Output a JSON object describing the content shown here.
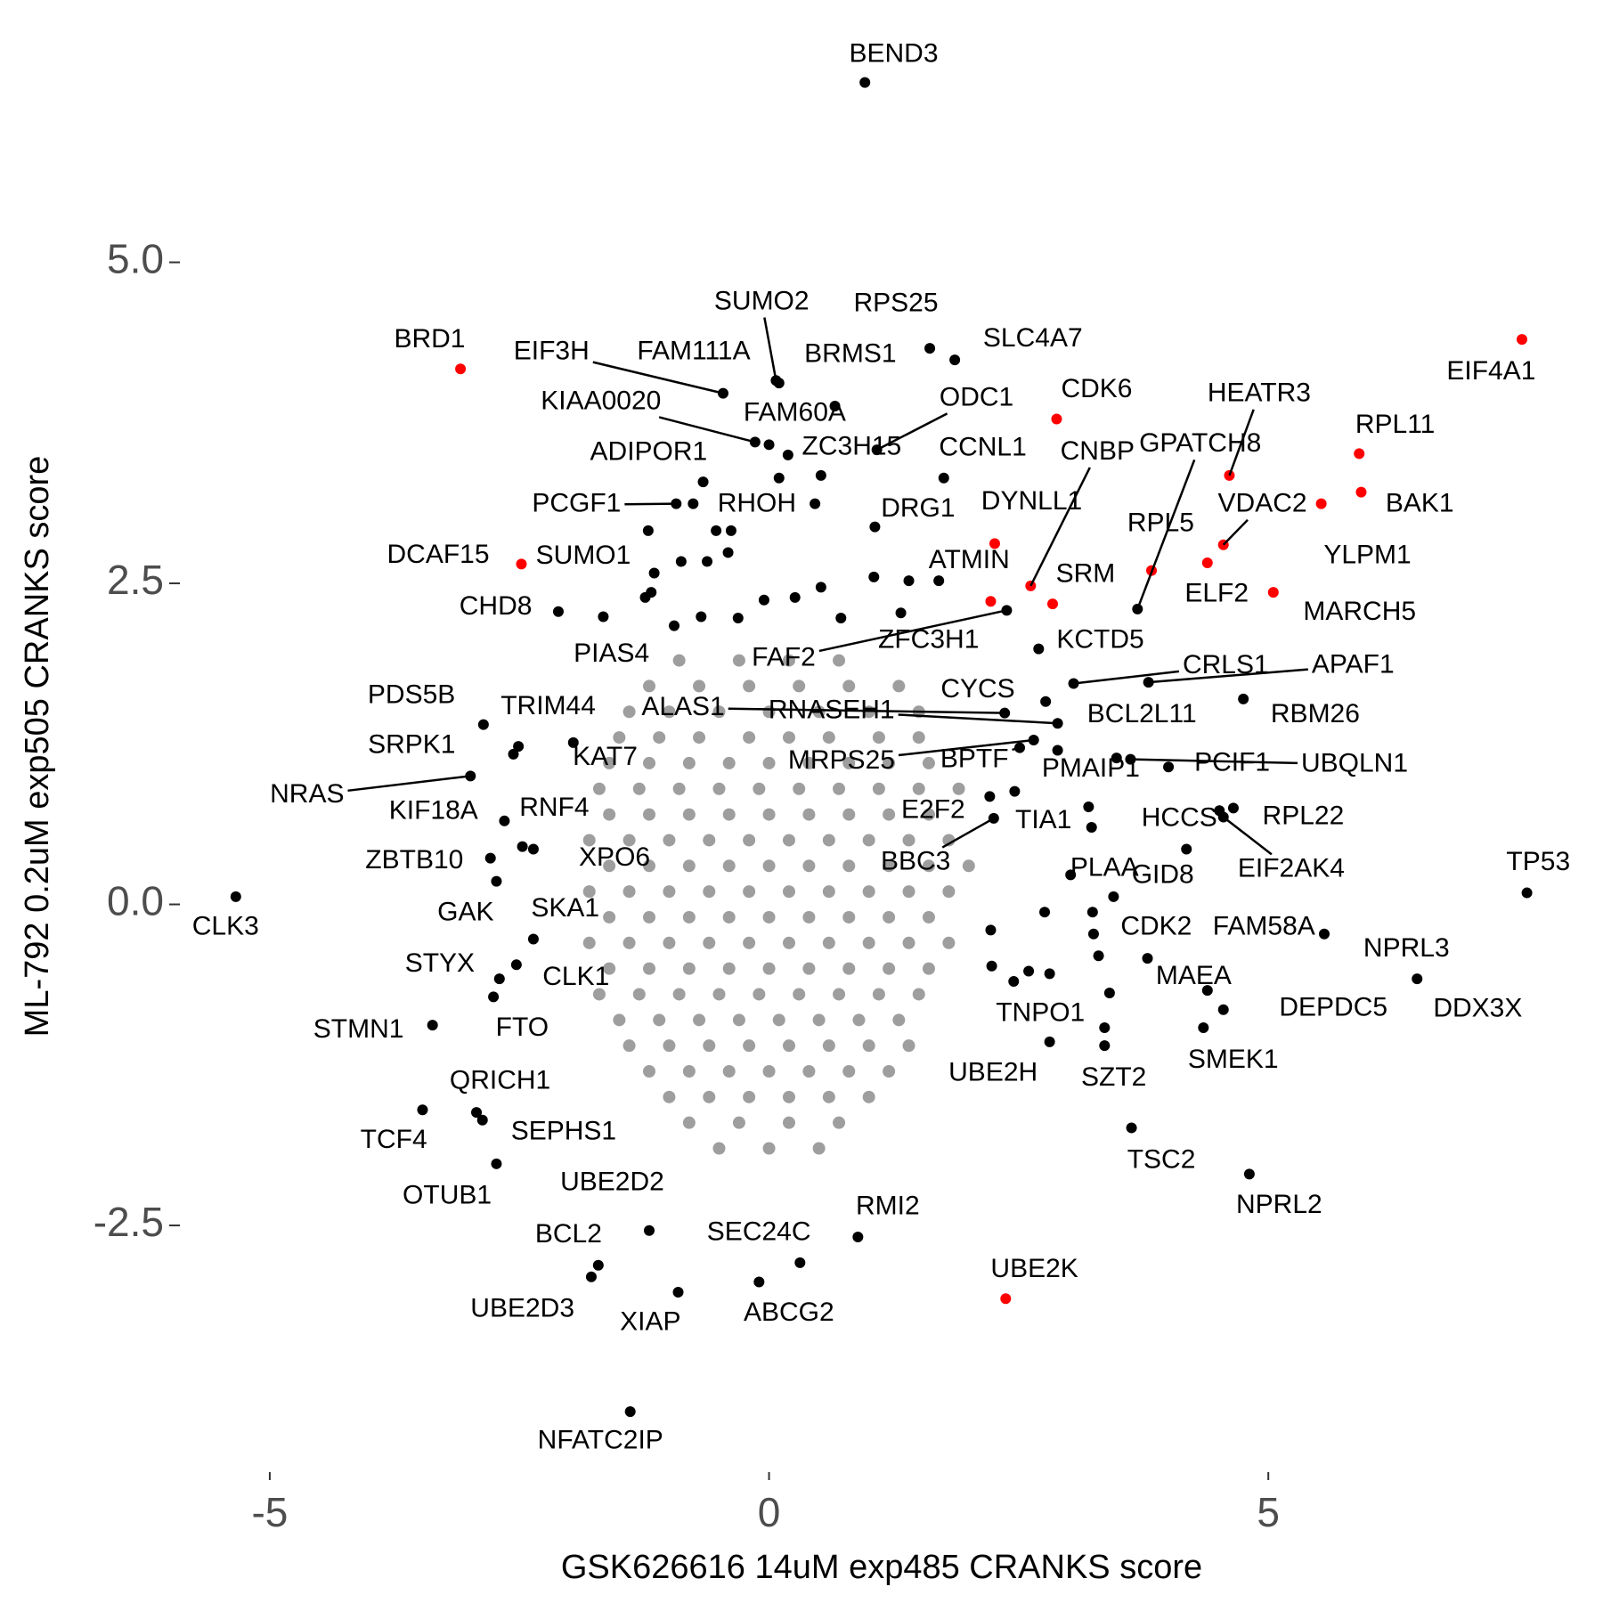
{
  "chart_data": {
    "type": "scatter",
    "x_label": "GSK626616 14uM exp485 CRANKS score",
    "y_label": "ML-792 0.2uM exp505 CRANKS score",
    "xlim": [
      -5.9,
      8.2
    ],
    "ylim": [
      -4.4,
      6.8
    ],
    "xticks": [
      -5,
      0,
      5
    ],
    "yticks": [
      -2.5,
      {
        "value": 0,
        "label": "0.0"
      },
      2.5,
      {
        "value": 5,
        "label": "5.0"
      }
    ],
    "grid": false,
    "series": [
      {
        "color": "#9e9e9e",
        "x": [
          -0.9,
          -0.3,
          0.2,
          0.7,
          -1.2,
          -0.7,
          -0.2,
          0.3,
          0.8,
          1.3,
          -1.4,
          -1.0,
          -0.5,
          0,
          0.5,
          1.0,
          1.5,
          -1.5,
          -1.1,
          -0.7,
          -0.2,
          0.2,
          0.6,
          1.1,
          1.5,
          -1.6,
          -1.2,
          -0.8,
          -0.4,
          0,
          0.4,
          0.8,
          1.2,
          1.6,
          -1.7,
          -1.3,
          -0.9,
          -0.5,
          -0.1,
          0.3,
          0.7,
          1.1,
          1.5,
          1.9,
          -1.6,
          -1.2,
          -0.8,
          -0.4,
          0,
          0.4,
          0.8,
          1.2,
          1.6,
          -1.8,
          -1.4,
          -1.0,
          -0.6,
          -0.2,
          0.2,
          0.6,
          1.0,
          1.4,
          1.8,
          -1.6,
          -1.2,
          -0.8,
          -0.4,
          0,
          0.4,
          0.8,
          1.2,
          1.6,
          2.0,
          -1.8,
          -1.4,
          -1.0,
          -0.6,
          -0.2,
          0.2,
          0.6,
          1.0,
          1.4,
          1.8,
          -1.6,
          -1.2,
          -0.8,
          -0.4,
          0,
          0.4,
          0.8,
          1.2,
          1.6,
          -1.8,
          -1.4,
          -1.0,
          -0.6,
          -0.2,
          0.2,
          0.6,
          1.0,
          1.4,
          1.8,
          -1.6,
          -1.2,
          -0.8,
          -0.4,
          0,
          0.4,
          0.8,
          1.2,
          1.6,
          -1.7,
          -1.3,
          -0.9,
          -0.5,
          -0.1,
          0.3,
          0.7,
          1.1,
          1.5,
          -1.5,
          -1.1,
          -0.7,
          -0.3,
          0.1,
          0.5,
          0.9,
          1.3,
          -1.4,
          -1.0,
          -0.6,
          -0.2,
          0.2,
          0.6,
          1.0,
          1.4,
          -1.2,
          -0.8,
          -0.4,
          0,
          0.4,
          0.8,
          1.2,
          -1.0,
          -0.6,
          -0.2,
          0.2,
          0.6,
          1.0,
          -0.8,
          -0.3,
          0.2,
          0.7,
          -0.5,
          0,
          0.5
        ],
        "values": [
          1.9,
          1.9,
          1.9,
          1.9,
          1.7,
          1.7,
          1.7,
          1.7,
          1.7,
          1.7,
          1.5,
          1.5,
          1.5,
          1.5,
          1.5,
          1.5,
          1.5,
          1.3,
          1.3,
          1.3,
          1.3,
          1.3,
          1.3,
          1.3,
          1.3,
          1.1,
          1.1,
          1.1,
          1.1,
          1.1,
          1.1,
          1.1,
          1.1,
          1.1,
          0.9,
          0.9,
          0.9,
          0.9,
          0.9,
          0.9,
          0.9,
          0.9,
          0.9,
          0.9,
          0.7,
          0.7,
          0.7,
          0.7,
          0.7,
          0.7,
          0.7,
          0.7,
          0.7,
          0.5,
          0.5,
          0.5,
          0.5,
          0.5,
          0.5,
          0.5,
          0.5,
          0.5,
          0.5,
          0.3,
          0.3,
          0.3,
          0.3,
          0.3,
          0.3,
          0.3,
          0.3,
          0.3,
          0.3,
          0.1,
          0.1,
          0.1,
          0.1,
          0.1,
          0.1,
          0.1,
          0.1,
          0.1,
          0.1,
          -0.1,
          -0.1,
          -0.1,
          -0.1,
          -0.1,
          -0.1,
          -0.1,
          -0.1,
          -0.1,
          -0.3,
          -0.3,
          -0.3,
          -0.3,
          -0.3,
          -0.3,
          -0.3,
          -0.3,
          -0.3,
          -0.3,
          -0.5,
          -0.5,
          -0.5,
          -0.5,
          -0.5,
          -0.5,
          -0.5,
          -0.5,
          -0.5,
          -0.7,
          -0.7,
          -0.7,
          -0.7,
          -0.7,
          -0.7,
          -0.7,
          -0.7,
          -0.7,
          -0.9,
          -0.9,
          -0.9,
          -0.9,
          -0.9,
          -0.9,
          -0.9,
          -0.9,
          -1.1,
          -1.1,
          -1.1,
          -1.1,
          -1.1,
          -1.1,
          -1.1,
          -1.1,
          -1.3,
          -1.3,
          -1.3,
          -1.3,
          -1.3,
          -1.3,
          -1.3,
          -1.5,
          -1.5,
          -1.5,
          -1.5,
          -1.5,
          -1.5,
          -1.7,
          -1.7,
          -1.7,
          -1.7,
          -1.9,
          -1.9,
          -1.9
        ]
      },
      {
        "color": "#000000",
        "x": [
          -0.53,
          -0.38,
          -1.21,
          -0.88,
          -0.62,
          -0.41,
          -0.05,
          0.26,
          0.52,
          0.72,
          1.05,
          1.4,
          1.7,
          -0.31,
          -0.68,
          -0.95,
          3.24,
          3.23,
          3.45,
          3.3,
          3.41,
          3.2,
          2.45,
          2.6,
          2.23,
          2.22,
          2.76,
          3.36,
          0.52,
          0.1,
          0.46,
          -1.18,
          -1.24
        ],
        "values": [
          2.91,
          2.91,
          2.91,
          2.67,
          2.67,
          2.74,
          2.37,
          2.39,
          2.47,
          2.23,
          2.55,
          2.52,
          2.52,
          2.23,
          2.24,
          2.17,
          -0.06,
          0.6,
          0.06,
          -0.4,
          -0.69,
          0.76,
          -0.6,
          -0.52,
          -0.48,
          -0.2,
          -0.06,
          -0.96,
          3.34,
          3.32,
          3.12,
          2.43,
          2.39
        ]
      },
      {
        "color": "#000000",
        "labels": [
          "BEND3",
          "SUMO2",
          "RPS25",
          "SLC4A7",
          "EIF3H",
          "FAM111A",
          "BRMS1",
          "KIAA0020",
          "FAM60A",
          "ODC1",
          "ADIPOR1",
          "ZC3H15",
          "CCNL1",
          "GPATCH8",
          "PCGF1",
          "RHOH",
          "DRG1",
          "SUMO1",
          "CHD8",
          "PIAS4",
          "FAF2",
          "ZFC3H1",
          "KCTD5",
          "CRLS1",
          "APAF1",
          "CYCS",
          "PDS5B",
          "TRIM44",
          "ALAS1",
          "RNASEH1",
          "BCL2L11",
          "RBM26",
          "SRPK1",
          "KAT7",
          "MRPS25",
          "BPTF",
          "PMAIP1",
          "PCIF1",
          "UBQLN1",
          "NRAS",
          "KIF18A",
          "RNF4",
          "E2F2",
          "TIA1",
          "HCCS",
          "RPL22",
          "EIF2AK4",
          "ZBTB10",
          "XPO6",
          "BBC3",
          "PLAA",
          "GID8",
          "TP53",
          "CLK3",
          "GAK",
          "SKA1",
          "CDK2",
          "FAM58A",
          "NPRL3",
          "DDX3X",
          "MAEA",
          "DEPDC5",
          "STYX",
          "CLK1",
          "TNPO1",
          "STMN1",
          "FTO",
          "SMEK1",
          "UBE2H",
          "SZT2",
          "QRICH1",
          "TCF4",
          "SEPHS1",
          "TSC2",
          "OTUB1",
          "NPRL2",
          "UBE2D2",
          "BCL2",
          "SEC24C",
          "RMI2",
          "UBE2D3",
          "XIAP",
          "ABCG2",
          "NFATC2IP"
        ],
        "x": [
          0.96,
          0.07,
          1.61,
          1.86,
          -0.46,
          0.1,
          0.66,
          -0.14,
          0,
          1.08,
          -0.66,
          0.19,
          1.75,
          3.69,
          -0.93,
          -0.76,
          1.06,
          -1.15,
          -2.11,
          -1.66,
          2.38,
          1.32,
          2.7,
          3.05,
          3.8,
          2.77,
          -2.86,
          -2.51,
          2.36,
          2.89,
          2.89,
          4.75,
          -2.56,
          -1.96,
          2.65,
          2.51,
          3.48,
          4.0,
          3.62,
          -2.99,
          -2.65,
          -2.47,
          2.21,
          2.46,
          4.51,
          4.65,
          4.55,
          -2.79,
          -2.36,
          2.25,
          3.02,
          4.18,
          7.59,
          -5.34,
          -2.73,
          -2.36,
          3.25,
          4.39,
          5.56,
          6.49,
          3.79,
          4.55,
          -2.7,
          -2.53,
          2.81,
          -3.37,
          -2.76,
          4.35,
          2.81,
          3.36,
          -2.93,
          -3.47,
          -2.87,
          3.63,
          -2.73,
          4.81,
          -1.2,
          -1.71,
          0.31,
          0.89,
          -1.78,
          -0.91,
          -0.1,
          -1.39
        ],
        "values": [
          6.4,
          4.08,
          4.33,
          4.24,
          3.98,
          4.06,
          3.88,
          3.6,
          3.58,
          3.54,
          3.29,
          3.5,
          3.32,
          2.3,
          3.12,
          3.12,
          2.94,
          2.58,
          2.28,
          2.24,
          2.29,
          2.27,
          1.99,
          1.72,
          1.73,
          1.58,
          1.4,
          1.23,
          1.49,
          1.41,
          1.2,
          1.6,
          1.17,
          1.26,
          1.28,
          1.22,
          1.14,
          1.07,
          1.13,
          1.0,
          0.65,
          0.45,
          0.84,
          0.88,
          0.73,
          0.75,
          0.68,
          0.36,
          0.43,
          0.67,
          0.23,
          0.43,
          0.09,
          0.06,
          0.18,
          -0.27,
          -0.23,
          -0.67,
          -0.23,
          -0.58,
          -0.42,
          -0.82,
          -0.58,
          -0.47,
          -0.54,
          -0.94,
          -0.72,
          -0.96,
          -1.07,
          -1.1,
          -1.62,
          -1.6,
          -1.68,
          -1.74,
          -2.02,
          -2.1,
          -2.54,
          -2.81,
          -2.79,
          -2.59,
          -2.9,
          -3.02,
          -2.94,
          -3.95
        ]
      },
      {
        "color": "#ff0000",
        "labels": [
          "BRD1",
          "EIF4A1",
          "CDK6",
          "HEATR3",
          "RPL11",
          "CNBP",
          "DYNLL1",
          "VDAC2",
          "ELF2",
          "BAK1",
          "YLPM1",
          "MARCH5",
          "DCAF15",
          "ATMIN",
          "SRM",
          "RPL5",
          "UBE2K"
        ],
        "x": [
          -3.09,
          7.54,
          2.88,
          4.61,
          5.91,
          2.62,
          2.26,
          4.55,
          4.39,
          5.93,
          5.53,
          5.05,
          -2.48,
          2.22,
          2.84,
          3.83,
          2.37
        ],
        "values": [
          4.17,
          4.4,
          3.78,
          3.34,
          3.51,
          2.48,
          2.81,
          2.8,
          2.66,
          3.21,
          3.12,
          2.43,
          2.65,
          2.36,
          2.34,
          2.6,
          -3.07
        ]
      }
    ]
  }
}
